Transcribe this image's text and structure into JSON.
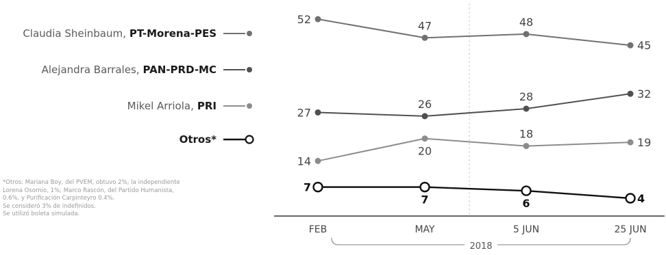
{
  "legend": [
    {
      "candidate": "Claudia Sheinbaum",
      "party": "PT-Morena-PES",
      "color": "#707070",
      "marker": "filled"
    },
    {
      "candidate": "Alejandra Barrales",
      "party": "PAN-PRD-MC",
      "color": "#505050",
      "marker": "filled"
    },
    {
      "candidate": "Mikel Arriola",
      "party": "PRI",
      "color": "#8c8c8c",
      "marker": "filled"
    },
    {
      "candidate": "",
      "party": "Otros*",
      "color": "#111111",
      "marker": "open"
    }
  ],
  "notes": [
    "*Otros: Mariana Boy, del PVEM, obtuvo 2%; la independiente",
    "Lorena Osornio, 1%; Marco Rascón, del Partido Humanista,",
    "0.6%, y Purificación Carpinteyro 0.4%.",
    "Se consideró 3% de indefinidos.",
    "Se utilizó boleta simulada."
  ],
  "chart_data": {
    "type": "line",
    "categories": [
      "FEB",
      "MAY",
      "5 JUN",
      "25 JUN"
    ],
    "group_label": "2018",
    "ylim": [
      0,
      55
    ],
    "series": [
      {
        "name": "Claudia Sheinbaum, PT-Morena-PES",
        "values": [
          52,
          47,
          48,
          45
        ],
        "color": "#707070",
        "marker": "filled",
        "labels": [
          "52",
          "47",
          "48",
          "45"
        ],
        "label_pos": [
          "left",
          "above",
          "above",
          "right"
        ]
      },
      {
        "name": "Alejandra Barrales, PAN-PRD-MC",
        "values": [
          27,
          26,
          28,
          32
        ],
        "color": "#505050",
        "marker": "filled",
        "labels": [
          "27",
          "26",
          "28",
          "32"
        ],
        "label_pos": [
          "left",
          "above",
          "above",
          "right"
        ]
      },
      {
        "name": "Mikel Arriola, PRI",
        "values": [
          14,
          20,
          18,
          19
        ],
        "color": "#8c8c8c",
        "marker": "filled",
        "labels": [
          "14",
          "20",
          "18",
          "19"
        ],
        "label_pos": [
          "left",
          "below",
          "above",
          "right"
        ]
      },
      {
        "name": "Otros*",
        "values": [
          7,
          7,
          6,
          4
        ],
        "color": "#111111",
        "marker": "open",
        "labels": [
          "7",
          "7",
          "6",
          "4"
        ],
        "label_pos": [
          "left",
          "below",
          "below",
          "right"
        ]
      }
    ]
  }
}
